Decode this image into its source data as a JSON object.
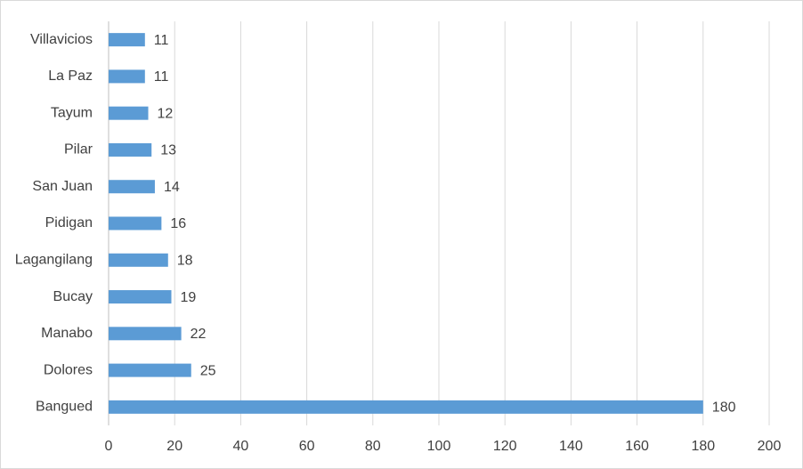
{
  "chart_data": {
    "type": "hbar",
    "categories": [
      "Villavicios",
      "La Paz",
      "Tayum",
      "Pilar",
      "San Juan",
      "Pidigan",
      "Lagangilang",
      "Bucay",
      "Manabo",
      "Dolores",
      "Bangued"
    ],
    "values": [
      11,
      11,
      12,
      13,
      14,
      16,
      18,
      19,
      22,
      25,
      180
    ],
    "color": "#5b9bd5",
    "xlim": [
      0,
      200
    ],
    "xticks": [
      0,
      20,
      40,
      60,
      80,
      100,
      120,
      140,
      160,
      180,
      200
    ],
    "grid": true
  }
}
